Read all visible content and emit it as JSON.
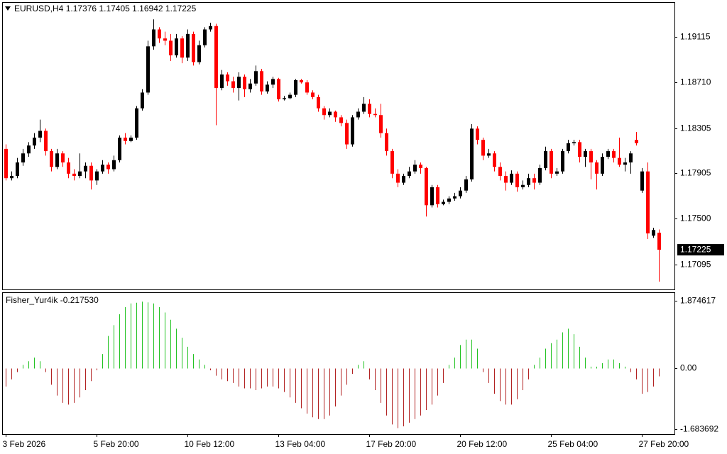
{
  "chart_data": {
    "type": "candlestick",
    "symbol": "EURUSD,H4",
    "bull_color": "#000000",
    "bear_color": "#ff0000",
    "ylim": [
      1.16873,
      1.19416
    ],
    "yticks": [
      1.19115,
      {
        "value": 1.1871,
        "label": "1.18710"
      },
      1.18305,
      1.17905,
      {
        "value": 1.175,
        "label": "1.17500"
      },
      1.17095
    ],
    "categories": [
      "3 Feb 2026",
      null,
      null,
      null,
      null,
      null,
      null,
      null,
      null,
      null,
      null,
      null,
      null,
      null,
      null,
      null,
      "5 Feb 20:00",
      null,
      null,
      null,
      null,
      null,
      null,
      null,
      null,
      null,
      null,
      null,
      null,
      null,
      null,
      null,
      "10 Feb 12:00",
      null,
      null,
      null,
      null,
      null,
      null,
      null,
      null,
      null,
      null,
      null,
      null,
      null,
      null,
      null,
      "13 Feb 04:00",
      null,
      null,
      null,
      null,
      null,
      null,
      null,
      null,
      null,
      null,
      null,
      null,
      null,
      null,
      null,
      "17 Feb 20:00",
      null,
      null,
      null,
      null,
      null,
      null,
      null,
      null,
      null,
      null,
      null,
      null,
      null,
      null,
      null,
      "20 Feb 12:00",
      null,
      null,
      null,
      null,
      null,
      null,
      null,
      null,
      null,
      null,
      null,
      null,
      null,
      null,
      null,
      "25 Feb 04:00",
      null,
      null,
      null,
      null,
      null,
      null,
      null,
      null,
      null,
      null,
      null,
      null,
      null,
      null,
      null,
      "27 Feb 20:00",
      null,
      null,
      null
    ],
    "candles": [
      [
        1.1812,
        1.1816,
        1.1784,
        1.1786
      ],
      [
        1.1786,
        1.1792,
        1.1784,
        1.1788
      ],
      [
        1.1788,
        1.1804,
        1.1786,
        1.18
      ],
      [
        1.18,
        1.1812,
        1.1797,
        1.1808
      ],
      [
        1.1808,
        1.1818,
        1.1805,
        1.1815
      ],
      [
        1.1815,
        1.1826,
        1.1812,
        1.1822
      ],
      [
        1.1822,
        1.1838,
        1.1818,
        1.1828
      ],
      [
        1.1828,
        1.183,
        1.1806,
        1.181
      ],
      [
        1.181,
        1.1812,
        1.1792,
        1.1796
      ],
      [
        1.1796,
        1.1812,
        1.1794,
        1.1808
      ],
      [
        1.1808,
        1.181,
        1.1796,
        1.18
      ],
      [
        1.18,
        1.1804,
        1.1786,
        1.179
      ],
      [
        1.179,
        1.1794,
        1.1784,
        1.1788
      ],
      [
        1.1788,
        1.1808,
        1.1786,
        1.1792
      ],
      [
        1.1792,
        1.18,
        1.1786,
        1.1797
      ],
      [
        1.1797,
        1.18,
        1.1776,
        1.1784
      ],
      [
        1.1784,
        1.1794,
        1.178,
        1.1792
      ],
      [
        1.1792,
        1.1802,
        1.179,
        1.1798
      ],
      [
        1.1798,
        1.18,
        1.179,
        1.1794
      ],
      [
        1.1794,
        1.1806,
        1.1792,
        1.1802
      ],
      [
        1.1802,
        1.1824,
        1.18,
        1.1822
      ],
      [
        1.1822,
        1.1826,
        1.1816,
        1.1819
      ],
      [
        1.1819,
        1.1824,
        1.1818,
        1.1822
      ],
      [
        1.1822,
        1.185,
        1.182,
        1.1848
      ],
      [
        1.1848,
        1.1865,
        1.1846,
        1.1862
      ],
      [
        1.1862,
        1.1908,
        1.186,
        1.1903
      ],
      [
        1.1903,
        1.1927,
        1.19,
        1.1918
      ],
      [
        1.1918,
        1.192,
        1.1906,
        1.191
      ],
      [
        1.191,
        1.1916,
        1.1904,
        1.1908
      ],
      [
        1.1908,
        1.1914,
        1.189,
        1.1895
      ],
      [
        1.1895,
        1.1914,
        1.1893,
        1.191
      ],
      [
        1.191,
        1.1912,
        1.1888,
        1.1893
      ],
      [
        1.1893,
        1.1918,
        1.189,
        1.1914
      ],
      [
        1.1914,
        1.1916,
        1.1886,
        1.1889
      ],
      [
        1.1889,
        1.1908,
        1.1887,
        1.1904
      ],
      [
        1.1904,
        1.192,
        1.1902,
        1.1918
      ],
      [
        1.1918,
        1.1924,
        1.1916,
        1.1921
      ],
      [
        1.1921,
        1.1923,
        1.1833,
        1.1866
      ],
      [
        1.1866,
        1.1882,
        1.1864,
        1.1878
      ],
      [
        1.1878,
        1.188,
        1.1868,
        1.1872
      ],
      [
        1.1872,
        1.1876,
        1.1862,
        1.1866
      ],
      [
        1.1866,
        1.188,
        1.1855,
        1.1876
      ],
      [
        1.1876,
        1.1878,
        1.1858,
        1.1865
      ],
      [
        1.1865,
        1.1874,
        1.1862,
        1.187
      ],
      [
        1.187,
        1.1886,
        1.1868,
        1.1881
      ],
      [
        1.1881,
        1.1883,
        1.186,
        1.1863
      ],
      [
        1.1863,
        1.1872,
        1.1861,
        1.1869
      ],
      [
        1.1869,
        1.1876,
        1.1866,
        1.1874
      ],
      [
        1.1874,
        1.1875,
        1.1854,
        1.1856
      ],
      [
        1.1856,
        1.1859,
        1.1855,
        1.1857
      ],
      [
        1.1857,
        1.1862,
        1.1856,
        1.186
      ],
      [
        1.186,
        1.1874,
        1.1858,
        1.1873
      ],
      [
        1.1873,
        1.1874,
        1.187,
        1.1871
      ],
      [
        1.1871,
        1.1873,
        1.186,
        1.1862
      ],
      [
        1.1862,
        1.1864,
        1.1856,
        1.1858
      ],
      [
        1.1858,
        1.186,
        1.1845,
        1.1848
      ],
      [
        1.1848,
        1.185,
        1.1838,
        1.1842
      ],
      [
        1.1842,
        1.1848,
        1.184,
        1.1845
      ],
      [
        1.1845,
        1.1846,
        1.1836,
        1.184
      ],
      [
        1.184,
        1.1842,
        1.1832,
        1.1835
      ],
      [
        1.1835,
        1.1838,
        1.1812,
        1.1816
      ],
      [
        1.1816,
        1.1842,
        1.1814,
        1.184
      ],
      [
        1.184,
        1.1848,
        1.1838,
        1.1845
      ],
      [
        1.1845,
        1.1858,
        1.1843,
        1.1852
      ],
      [
        1.1852,
        1.1856,
        1.184,
        1.1843
      ],
      [
        1.1843,
        1.1848,
        1.184,
        1.1842
      ],
      [
        1.1842,
        1.1852,
        1.1822,
        1.1826
      ],
      [
        1.1826,
        1.183,
        1.1806,
        1.181
      ],
      [
        1.181,
        1.1812,
        1.1786,
        1.179
      ],
      [
        1.179,
        1.1794,
        1.1778,
        1.1782
      ],
      [
        1.1782,
        1.179,
        1.178,
        1.1788
      ],
      [
        1.1788,
        1.1796,
        1.1786,
        1.1792
      ],
      [
        1.1792,
        1.1802,
        1.179,
        1.1798
      ],
      [
        1.1798,
        1.18,
        1.179,
        1.1795
      ],
      [
        1.1795,
        1.1796,
        1.1752,
        1.1762
      ],
      [
        1.1762,
        1.178,
        1.176,
        1.1778
      ],
      [
        1.1778,
        1.178,
        1.176,
        1.1763
      ],
      [
        1.1763,
        1.1767,
        1.1762,
        1.1765
      ],
      [
        1.1765,
        1.177,
        1.1763,
        1.1768
      ],
      [
        1.1768,
        1.1773,
        1.1766,
        1.177
      ],
      [
        1.177,
        1.1778,
        1.1768,
        1.1775
      ],
      [
        1.1775,
        1.1788,
        1.1773,
        1.1785
      ],
      [
        1.1785,
        1.1834,
        1.1783,
        1.183
      ],
      [
        1.183,
        1.1832,
        1.1816,
        1.182
      ],
      [
        1.182,
        1.1822,
        1.1802,
        1.1806
      ],
      [
        1.1806,
        1.1812,
        1.1804,
        1.1808
      ],
      [
        1.1808,
        1.181,
        1.1792,
        1.1796
      ],
      [
        1.1796,
        1.18,
        1.1784,
        1.1788
      ],
      [
        1.1788,
        1.1792,
        1.1775,
        1.1782
      ],
      [
        1.1782,
        1.1793,
        1.178,
        1.179
      ],
      [
        1.179,
        1.1792,
        1.1774,
        1.1778
      ],
      [
        1.1778,
        1.1784,
        1.1776,
        1.178
      ],
      [
        1.178,
        1.179,
        1.1778,
        1.1786
      ],
      [
        1.1786,
        1.179,
        1.1776,
        1.1782
      ],
      [
        1.1782,
        1.1798,
        1.178,
        1.1795
      ],
      [
        1.1795,
        1.1814,
        1.1793,
        1.181
      ],
      [
        1.181,
        1.1812,
        1.1786,
        1.179
      ],
      [
        1.179,
        1.1795,
        1.1788,
        1.1792
      ],
      [
        1.1792,
        1.1812,
        1.179,
        1.181
      ],
      [
        1.181,
        1.182,
        1.1808,
        1.1817
      ],
      [
        1.1817,
        1.182,
        1.1815,
        1.1818
      ],
      [
        1.1818,
        1.182,
        1.18,
        1.1805
      ],
      [
        1.1805,
        1.1812,
        1.1796,
        1.181
      ],
      [
        1.181,
        1.1812,
        1.1785,
        1.18
      ],
      [
        1.18,
        1.1802,
        1.1776,
        1.179
      ],
      [
        1.179,
        1.1808,
        1.1788,
        1.1805
      ],
      [
        1.1805,
        1.1812,
        1.1803,
        1.181
      ],
      [
        1.181,
        1.1812,
        1.18,
        1.1804
      ],
      [
        1.1804,
        1.1822,
        1.1796,
        1.1798
      ],
      [
        1.1798,
        1.1804,
        1.1792,
        1.18
      ],
      [
        1.18,
        1.181,
        1.179,
        1.1808
      ],
      [
        1.182,
        1.1827,
        1.1815,
        1.1817
      ],
      [
        1.1775,
        1.1795,
        1.1773,
        1.1792
      ],
      [
        1.1792,
        1.18,
        1.1732,
        1.1737
      ],
      [
        1.1735,
        1.1742,
        1.1733,
        1.174
      ],
      [
        1.17376,
        1.17405,
        1.16942,
        1.17225
      ]
    ],
    "indicator": {
      "type": "histogram",
      "title": "Fisher_Yur4ik -0.217530",
      "up_color": "#22c322",
      "down_color": "#b22222",
      "ylim": [
        -1.8164,
        2.0898
      ],
      "yticks": [
        1.874617,
        {
          "value": 0,
          "label": "0.00"
        },
        -1.683692
      ],
      "values": [
        -0.5,
        -0.3,
        -0.1,
        0.1,
        0.2,
        0.3,
        0.2,
        -0.1,
        -0.45,
        -0.75,
        -0.95,
        -1.0,
        -0.95,
        -0.8,
        -0.6,
        -0.35,
        -0.05,
        0.4,
        0.9,
        1.2,
        1.5,
        1.7,
        1.8,
        1.82,
        1.85,
        1.83,
        1.8,
        1.7,
        1.55,
        1.35,
        1.1,
        0.85,
        0.6,
        0.4,
        0.25,
        0.1,
        -0.05,
        -0.2,
        -0.3,
        -0.35,
        -0.4,
        -0.5,
        -0.55,
        -0.55,
        -0.6,
        -0.55,
        -0.5,
        -0.5,
        -0.55,
        -0.65,
        -0.8,
        -0.95,
        -1.1,
        -1.25,
        -1.35,
        -1.4,
        -1.4,
        -1.3,
        -1.05,
        -0.75,
        -0.45,
        -0.15,
        0.1,
        0.2,
        -0.3,
        -0.6,
        -0.95,
        -1.3,
        -1.55,
        -1.65,
        -1.6,
        -1.5,
        -1.4,
        -1.3,
        -1.15,
        -1.0,
        -0.75,
        -0.4,
        0.1,
        0.3,
        0.65,
        0.8,
        0.8,
        0.55,
        -0.1,
        -0.4,
        -0.7,
        -0.9,
        -1.0,
        -1.0,
        -0.85,
        -0.6,
        -0.3,
        0.1,
        0.3,
        0.55,
        0.7,
        0.8,
        1.0,
        1.1,
        0.95,
        0.6,
        0.3,
        0.05,
        0.05,
        0.15,
        0.25,
        0.25,
        0.15,
        0.05,
        -0.1,
        -0.3,
        -0.7,
        -0.65,
        -0.5,
        -0.21753
      ]
    }
  }
}
